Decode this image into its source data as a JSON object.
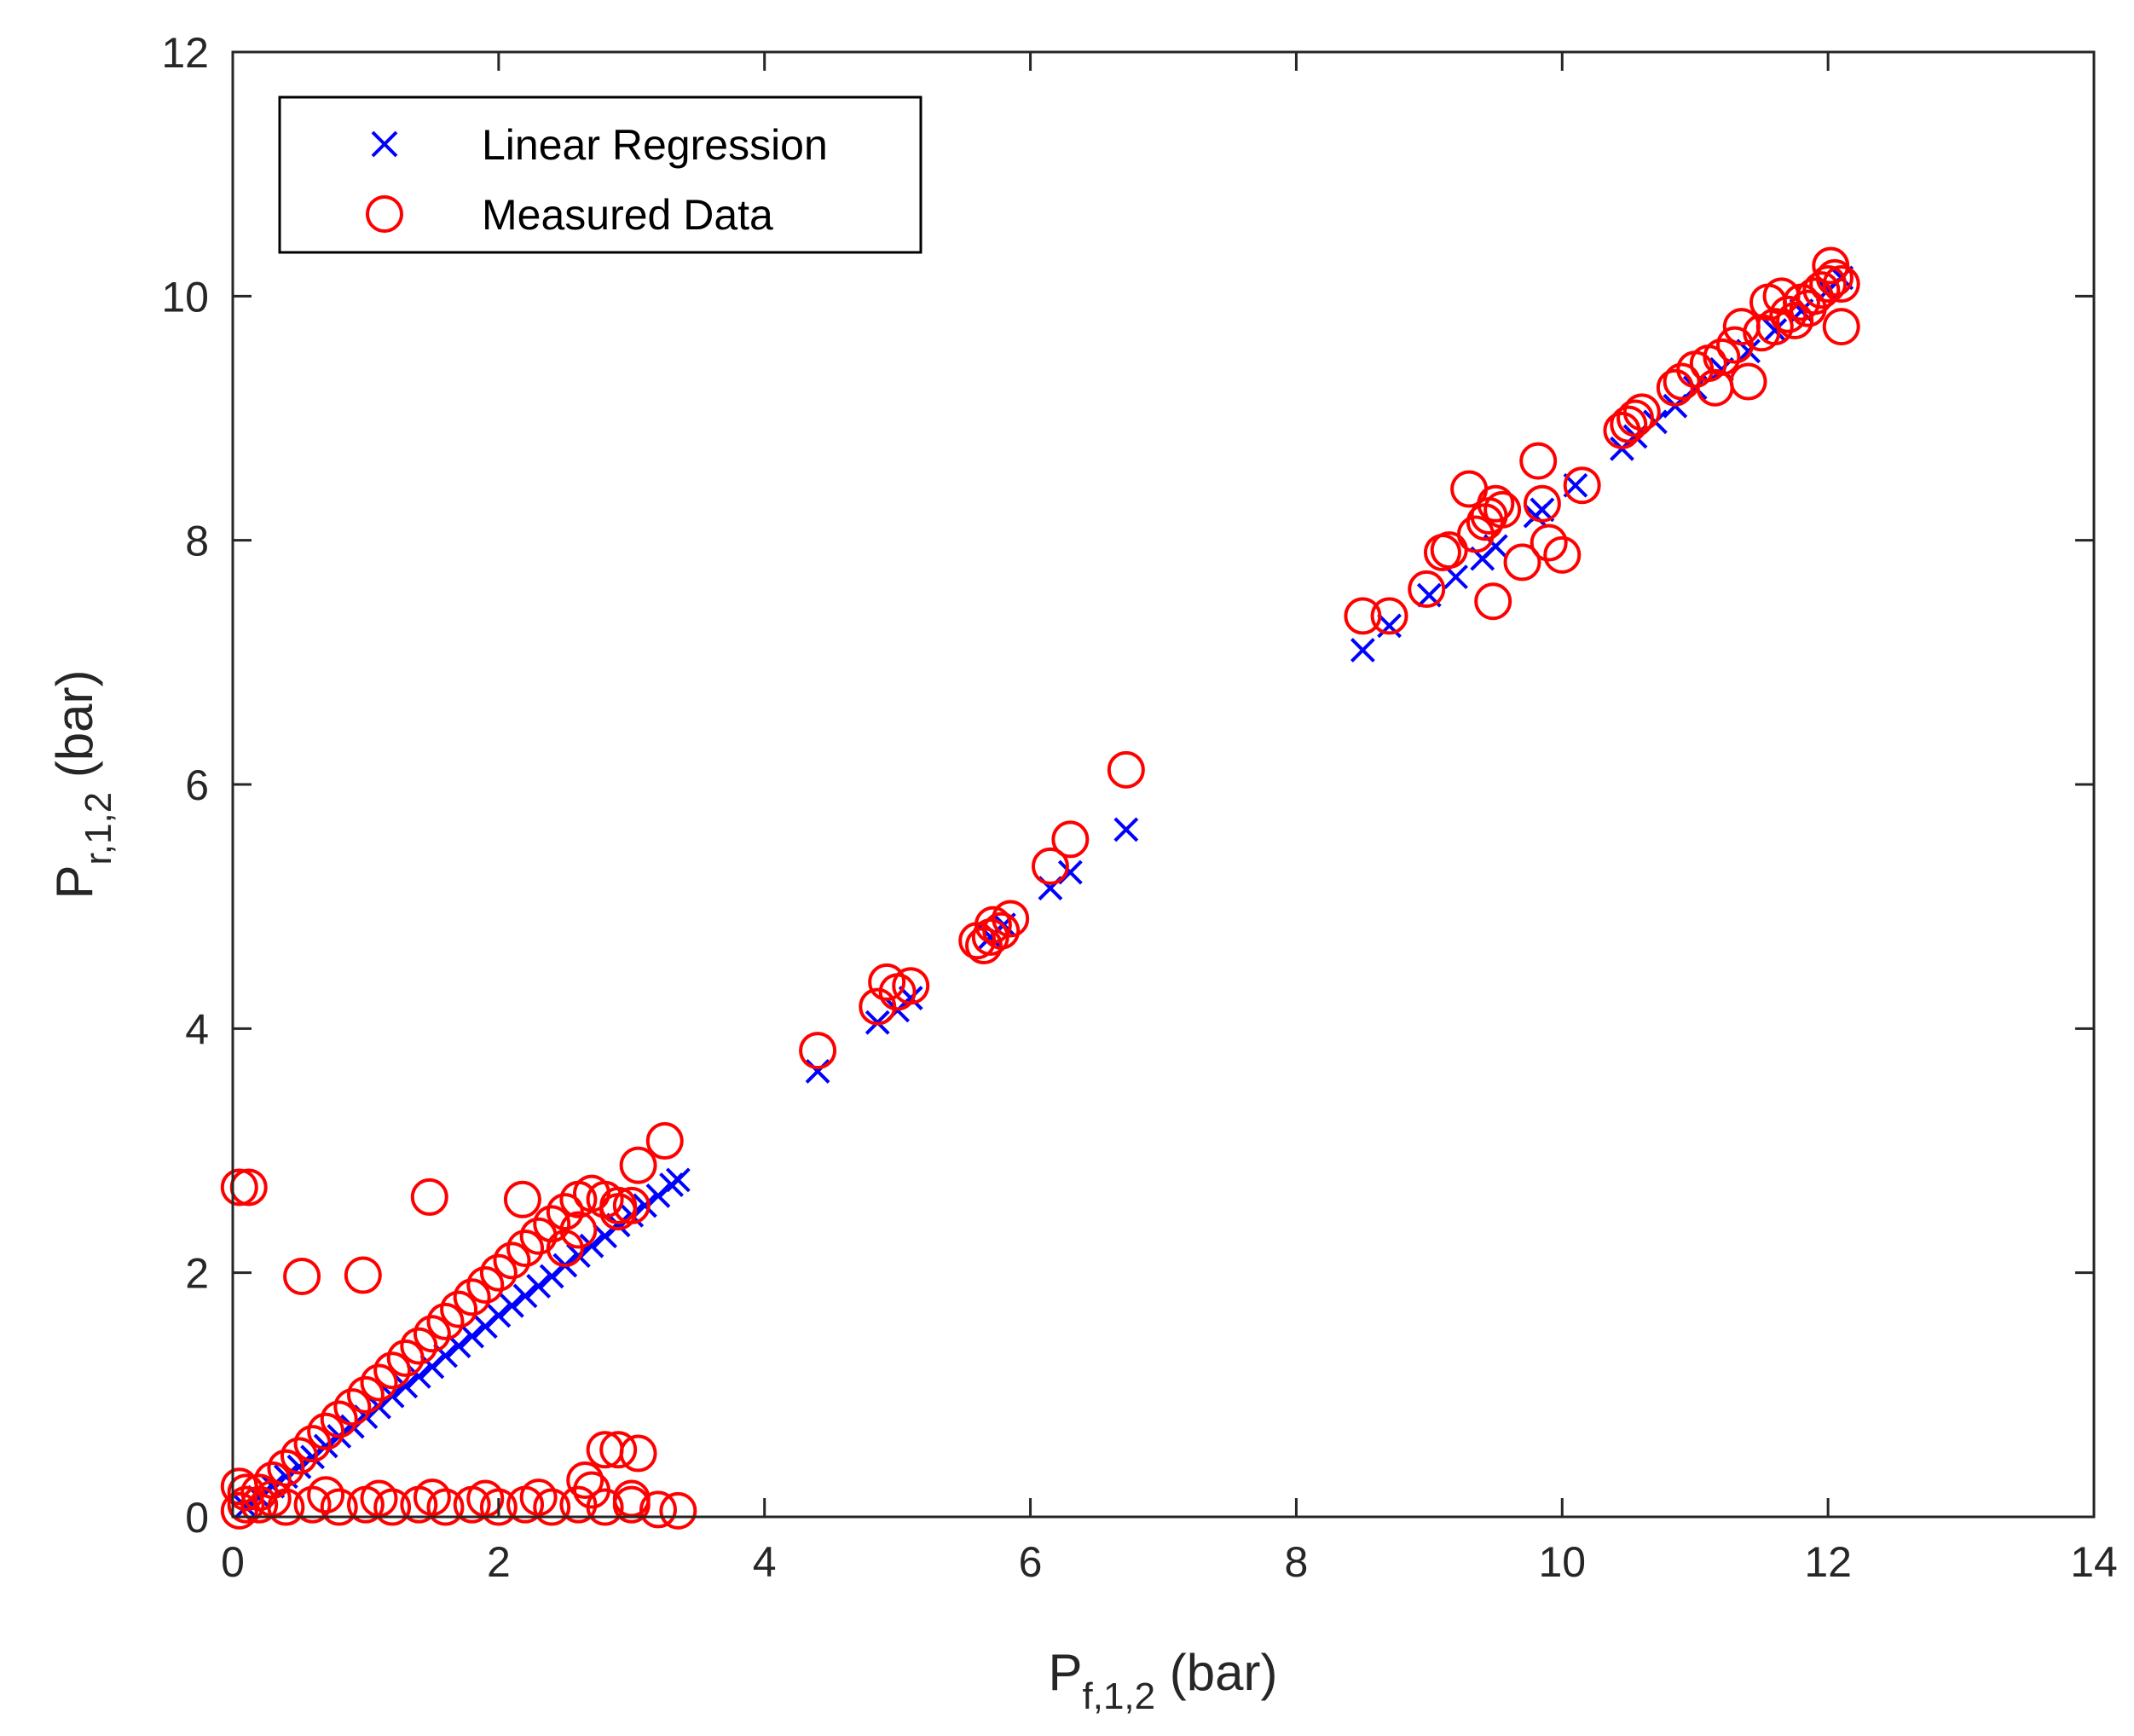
{
  "chart_data": {
    "type": "scatter",
    "title": "",
    "xlabel": {
      "main": "P",
      "sub": "f,1,2",
      "unit": " (bar)"
    },
    "ylabel": {
      "main": "P",
      "sub": "r,1,2",
      "unit": " (bar)"
    },
    "xlim": [
      0,
      14
    ],
    "ylim": [
      0,
      12
    ],
    "xticks": [
      0,
      2,
      4,
      6,
      8,
      10,
      12,
      14
    ],
    "yticks": [
      0,
      2,
      4,
      6,
      8,
      10,
      12
    ],
    "xtick_labels": [
      "0",
      "2",
      "4",
      "6",
      "8",
      "10",
      "12",
      "14"
    ],
    "ytick_labels": [
      "0",
      "2",
      "4",
      "6",
      "8",
      "10",
      "12"
    ],
    "grid": false,
    "legend_position": "top-left",
    "series": [
      {
        "name": "Linear Regression",
        "marker": "x",
        "color": "#0000ff",
        "points": [
          [
            0.1,
            0.08
          ],
          [
            0.2,
            0.16
          ],
          [
            0.3,
            0.25
          ],
          [
            0.4,
            0.33
          ],
          [
            0.5,
            0.41
          ],
          [
            0.6,
            0.49
          ],
          [
            0.7,
            0.58
          ],
          [
            0.8,
            0.66
          ],
          [
            0.9,
            0.74
          ],
          [
            1.0,
            0.82
          ],
          [
            1.1,
            0.9
          ],
          [
            1.2,
            0.99
          ],
          [
            1.3,
            1.07
          ],
          [
            1.4,
            1.15
          ],
          [
            1.5,
            1.23
          ],
          [
            1.6,
            1.32
          ],
          [
            1.7,
            1.4
          ],
          [
            1.8,
            1.48
          ],
          [
            1.9,
            1.56
          ],
          [
            2.0,
            1.65
          ],
          [
            2.1,
            1.73
          ],
          [
            2.2,
            1.81
          ],
          [
            2.3,
            1.89
          ],
          [
            2.4,
            1.97
          ],
          [
            2.5,
            2.06
          ],
          [
            2.6,
            2.14
          ],
          [
            2.7,
            2.22
          ],
          [
            2.8,
            2.3
          ],
          [
            2.9,
            2.39
          ],
          [
            3.0,
            2.47
          ],
          [
            3.1,
            2.55
          ],
          [
            3.2,
            2.63
          ],
          [
            3.3,
            2.72
          ],
          [
            3.35,
            2.76
          ],
          [
            4.4,
            3.65
          ],
          [
            4.85,
            4.05
          ],
          [
            5.0,
            4.15
          ],
          [
            5.1,
            4.25
          ],
          [
            5.7,
            4.75
          ],
          [
            5.8,
            4.85
          ],
          [
            6.15,
            5.15
          ],
          [
            6.3,
            5.28
          ],
          [
            6.72,
            5.63
          ],
          [
            8.5,
            7.1
          ],
          [
            8.7,
            7.3
          ],
          [
            9.0,
            7.55
          ],
          [
            9.2,
            7.7
          ],
          [
            9.4,
            7.85
          ],
          [
            9.5,
            7.95
          ],
          [
            9.8,
            8.2
          ],
          [
            9.85,
            8.25
          ],
          [
            10.1,
            8.45
          ],
          [
            10.45,
            8.75
          ],
          [
            10.55,
            8.85
          ],
          [
            10.7,
            8.97
          ],
          [
            10.85,
            9.1
          ],
          [
            11.0,
            9.25
          ],
          [
            11.2,
            9.4
          ],
          [
            11.4,
            9.55
          ],
          [
            11.6,
            9.72
          ],
          [
            11.8,
            9.88
          ],
          [
            12.0,
            10.05
          ],
          [
            12.1,
            10.15
          ]
        ]
      },
      {
        "name": "Measured Data",
        "marker": "o",
        "color": "#ff0000",
        "points": [
          [
            0.05,
            0.05
          ],
          [
            0.1,
            0.1
          ],
          [
            0.2,
            0.2
          ],
          [
            0.3,
            0.3
          ],
          [
            0.4,
            0.4
          ],
          [
            0.5,
            0.5
          ],
          [
            0.6,
            0.6
          ],
          [
            0.7,
            0.7
          ],
          [
            0.8,
            0.8
          ],
          [
            0.9,
            0.9
          ],
          [
            1.0,
            1.0
          ],
          [
            1.1,
            1.1
          ],
          [
            1.2,
            1.2
          ],
          [
            1.3,
            1.3
          ],
          [
            1.4,
            1.4
          ],
          [
            1.5,
            1.5
          ],
          [
            1.6,
            1.6
          ],
          [
            1.7,
            1.7
          ],
          [
            1.8,
            1.8
          ],
          [
            1.9,
            1.9
          ],
          [
            2.0,
            2.0
          ],
          [
            2.1,
            2.1
          ],
          [
            2.2,
            2.2
          ],
          [
            2.3,
            2.3
          ],
          [
            2.4,
            2.4
          ],
          [
            2.5,
            2.5
          ],
          [
            2.6,
            2.6
          ],
          [
            2.7,
            2.65
          ],
          [
            2.8,
            2.6
          ],
          [
            2.9,
            2.55
          ],
          [
            3.0,
            2.55
          ],
          [
            0.05,
            2.7
          ],
          [
            0.12,
            2.7
          ],
          [
            0.52,
            1.97
          ],
          [
            0.98,
            1.98
          ],
          [
            1.48,
            2.62
          ],
          [
            2.18,
            2.6
          ],
          [
            3.05,
            2.88
          ],
          [
            3.25,
            3.08
          ],
          [
            2.5,
            2.2
          ],
          [
            2.6,
            2.35
          ],
          [
            2.9,
            2.5
          ],
          [
            0.1,
            0.2
          ],
          [
            0.2,
            0.1
          ],
          [
            0.4,
            0.08
          ],
          [
            0.6,
            0.1
          ],
          [
            0.8,
            0.08
          ],
          [
            1.0,
            0.1
          ],
          [
            1.2,
            0.08
          ],
          [
            1.4,
            0.1
          ],
          [
            1.6,
            0.08
          ],
          [
            1.8,
            0.1
          ],
          [
            2.0,
            0.08
          ],
          [
            2.2,
            0.1
          ],
          [
            2.4,
            0.08
          ],
          [
            2.6,
            0.1
          ],
          [
            2.8,
            0.08
          ],
          [
            3.0,
            0.1
          ],
          [
            3.2,
            0.06
          ],
          [
            3.35,
            0.05
          ],
          [
            0.3,
            0.15
          ],
          [
            0.7,
            0.18
          ],
          [
            1.1,
            0.15
          ],
          [
            1.5,
            0.16
          ],
          [
            1.9,
            0.15
          ],
          [
            2.3,
            0.16
          ],
          [
            2.7,
            0.22
          ],
          [
            2.65,
            0.3
          ],
          [
            2.8,
            0.55
          ],
          [
            2.9,
            0.55
          ],
          [
            3.05,
            0.52
          ],
          [
            3.0,
            0.15
          ],
          [
            0.05,
            0.25
          ],
          [
            4.4,
            3.82
          ],
          [
            4.85,
            4.18
          ],
          [
            4.92,
            4.38
          ],
          [
            5.0,
            4.3
          ],
          [
            5.1,
            4.35
          ],
          [
            5.6,
            4.72
          ],
          [
            5.65,
            4.68
          ],
          [
            5.7,
            4.75
          ],
          [
            5.72,
            4.85
          ],
          [
            5.78,
            4.8
          ],
          [
            5.85,
            4.9
          ],
          [
            6.15,
            5.33
          ],
          [
            6.3,
            5.55
          ],
          [
            6.72,
            6.12
          ],
          [
            8.5,
            7.38
          ],
          [
            8.7,
            7.38
          ],
          [
            8.98,
            7.6
          ],
          [
            9.1,
            7.9
          ],
          [
            9.15,
            7.92
          ],
          [
            9.3,
            8.42
          ],
          [
            9.35,
            8.05
          ],
          [
            9.42,
            8.15
          ],
          [
            9.45,
            8.2
          ],
          [
            9.5,
            8.3
          ],
          [
            9.55,
            8.25
          ],
          [
            9.48,
            7.5
          ],
          [
            9.7,
            7.82
          ],
          [
            9.82,
            8.65
          ],
          [
            9.85,
            8.3
          ],
          [
            9.9,
            7.98
          ],
          [
            10.0,
            7.88
          ],
          [
            10.15,
            8.45
          ],
          [
            10.45,
            8.9
          ],
          [
            10.5,
            8.95
          ],
          [
            10.55,
            9.0
          ],
          [
            10.6,
            9.05
          ],
          [
            10.85,
            9.25
          ],
          [
            10.9,
            9.3
          ],
          [
            11.0,
            9.4
          ],
          [
            11.1,
            9.45
          ],
          [
            11.15,
            9.25
          ],
          [
            11.2,
            9.5
          ],
          [
            11.3,
            9.6
          ],
          [
            11.4,
            9.3
          ],
          [
            11.5,
            9.7
          ],
          [
            11.6,
            9.75
          ],
          [
            11.7,
            9.85
          ],
          [
            11.75,
            9.8
          ],
          [
            11.8,
            9.95
          ],
          [
            11.85,
            9.9
          ],
          [
            11.9,
            10.0
          ],
          [
            11.95,
            10.05
          ],
          [
            12.0,
            10.1
          ],
          [
            12.02,
            10.25
          ],
          [
            12.05,
            10.15
          ],
          [
            12.1,
            10.1
          ],
          [
            12.1,
            9.75
          ],
          [
            11.65,
            10.0
          ],
          [
            11.55,
            9.95
          ],
          [
            11.35,
            9.75
          ]
        ]
      }
    ]
  }
}
